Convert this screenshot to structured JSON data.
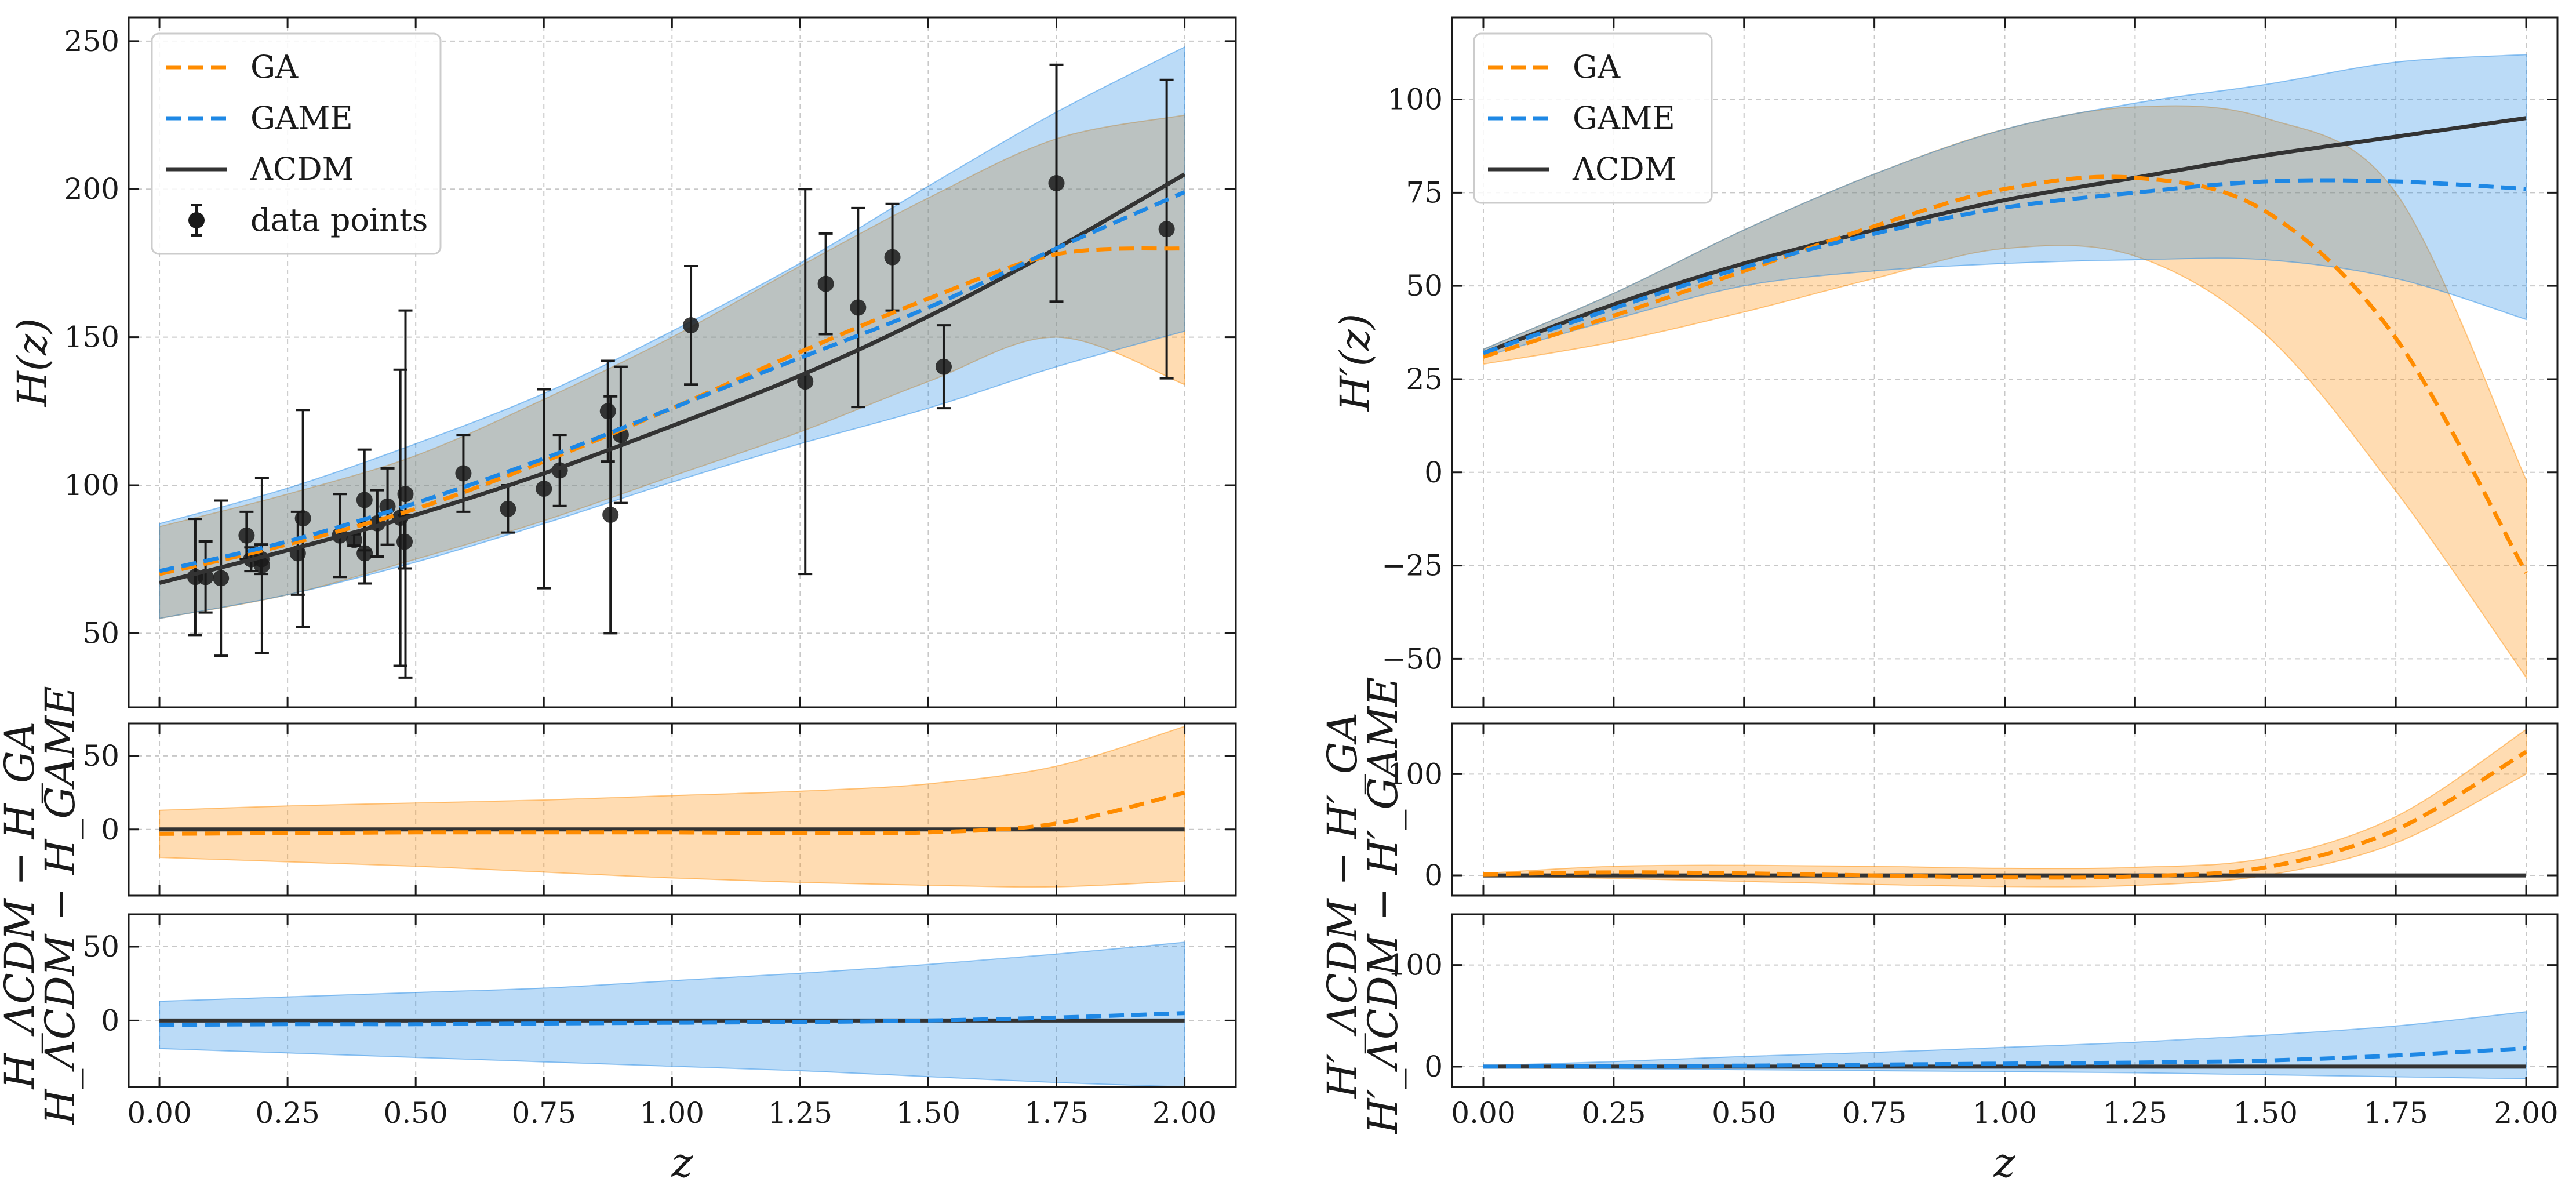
{
  "figure": {
    "colors": {
      "ga": "#ff8c00",
      "game": "#1e88e5",
      "lcdm": "#333333",
      "data": "#1a1a1a",
      "ga_band": "#ffd3a1",
      "game_band": "#b9dcfb"
    },
    "legend_labels": {
      "ga": "GA",
      "game": "GAME",
      "lcdm": "ΛCDM",
      "data": "data points"
    },
    "xlabel": "z",
    "xticks": [
      "0.00",
      "0.25",
      "0.50",
      "0.75",
      "1.00",
      "1.25",
      "1.50",
      "1.75",
      "2.00"
    ]
  },
  "chart_data": [
    {
      "id": "H-main",
      "type": "line",
      "ylabel": "H(z)",
      "xlim": [
        -0.06,
        2.1
      ],
      "ylim": [
        25,
        258
      ],
      "yticks": [
        50,
        100,
        150,
        200,
        250
      ],
      "x": [
        0.0,
        0.25,
        0.5,
        0.75,
        1.0,
        1.25,
        1.5,
        1.75,
        2.0
      ],
      "series": [
        {
          "name": "GA",
          "values": [
            70,
            80,
            92,
            108,
            126,
            145,
            163,
            178,
            180
          ],
          "lower": [
            55,
            63,
            75,
            88,
            103,
            118,
            135,
            150,
            134
          ],
          "upper": [
            86,
            97,
            110,
            129,
            150,
            174,
            197,
            217,
            225
          ]
        },
        {
          "name": "GAME",
          "values": [
            71,
            81,
            94,
            109,
            126,
            143,
            160,
            180,
            199
          ],
          "lower": [
            55,
            63,
            74,
            87,
            101,
            114,
            126,
            140,
            152
          ],
          "upper": [
            87,
            99,
            114,
            131,
            152,
            175,
            201,
            226,
            248
          ]
        },
        {
          "name": "ΛCDM",
          "values": [
            67,
            78,
            90,
            104,
            120,
            137,
            157,
            180,
            205
          ]
        }
      ],
      "points": {
        "x": [
          0.07,
          0.09,
          0.12,
          0.17,
          0.179,
          0.199,
          0.2,
          0.27,
          0.28,
          0.352,
          0.38,
          0.4,
          0.4004,
          0.425,
          0.445,
          0.47,
          0.4783,
          0.48,
          0.593,
          0.68,
          0.75,
          0.781,
          0.875,
          0.88,
          0.9,
          1.037,
          1.26,
          1.3,
          1.363,
          1.43,
          1.53,
          1.75,
          1.965
        ],
        "y": [
          69,
          69,
          68.6,
          83,
          75,
          75,
          72.9,
          77,
          88.8,
          83,
          81.5,
          95,
          77,
          87.1,
          92.8,
          89,
          80.9,
          97,
          104,
          92,
          98.8,
          105,
          125,
          90,
          117,
          154,
          135,
          168,
          160,
          177,
          140,
          202,
          186.5
        ],
        "err": [
          19.6,
          12,
          26.2,
          8,
          4,
          5,
          29.6,
          14,
          36.6,
          14,
          1.9,
          17,
          10.2,
          11.2,
          12.9,
          50,
          9,
          62,
          13,
          8,
          33.6,
          12,
          17,
          40,
          23,
          20,
          65,
          17,
          33.6,
          18,
          14,
          40,
          50.4
        ]
      }
    },
    {
      "id": "H-diff-ga",
      "type": "line",
      "ylabel": "H_ΛCDM − H_GA",
      "xlim": [
        -0.06,
        2.1
      ],
      "ylim": [
        -45,
        72
      ],
      "yticks": [
        0,
        50
      ],
      "x": [
        0.0,
        0.25,
        0.5,
        0.75,
        1.0,
        1.25,
        1.5,
        1.75,
        2.0
      ],
      "series": [
        {
          "name": "GA",
          "values": [
            -3,
            -2.5,
            -2,
            -2,
            -2,
            -2.5,
            -2,
            4,
            25
          ],
          "lower": [
            -19,
            -22,
            -25,
            -29,
            -33,
            -36,
            -38,
            -39,
            -35
          ],
          "upper": [
            13,
            16,
            18,
            20,
            23,
            26,
            31,
            43,
            70
          ]
        },
        {
          "name": "ΛCDM",
          "values": [
            0,
            0,
            0,
            0,
            0,
            0,
            0,
            0,
            0
          ]
        }
      ]
    },
    {
      "id": "H-diff-game",
      "type": "line",
      "ylabel": "H_ΛCDM − H_GAME",
      "xlim": [
        -0.06,
        2.1
      ],
      "ylim": [
        -45,
        72
      ],
      "yticks": [
        0,
        50
      ],
      "x": [
        0.0,
        0.25,
        0.5,
        0.75,
        1.0,
        1.25,
        1.5,
        1.75,
        2.0
      ],
      "series": [
        {
          "name": "GAME",
          "values": [
            -3,
            -2.5,
            -2.5,
            -2,
            -1.5,
            -1,
            0,
            2,
            5
          ],
          "lower": [
            -19,
            -22,
            -25,
            -28,
            -31,
            -34,
            -38,
            -42,
            -45
          ],
          "upper": [
            13,
            16,
            19,
            22,
            27,
            32,
            38,
            45,
            53
          ]
        },
        {
          "name": "ΛCDM",
          "values": [
            0,
            0,
            0,
            0,
            0,
            0,
            0,
            0,
            0
          ]
        }
      ]
    },
    {
      "id": "Hp-main",
      "type": "line",
      "ylabel": "H′(z)",
      "xlim": [
        -0.06,
        2.06
      ],
      "ylim": [
        -63,
        122
      ],
      "yticks": [
        -50,
        -25,
        0,
        25,
        50,
        75,
        100
      ],
      "x": [
        0.0,
        0.25,
        0.5,
        0.75,
        1.0,
        1.25,
        1.5,
        1.75,
        2.0
      ],
      "series": [
        {
          "name": "GA",
          "values": [
            31,
            42,
            54,
            66,
            76,
            79,
            70,
            36,
            -27
          ],
          "lower": [
            29,
            35,
            43,
            52,
            60,
            58,
            37,
            -5,
            -55
          ],
          "upper": [
            33,
            48,
            65,
            80,
            92,
            98,
            95,
            75,
            -2
          ]
        },
        {
          "name": "GAME",
          "values": [
            32,
            44,
            55,
            64,
            71,
            75,
            78,
            78,
            76
          ],
          "lower": [
            31,
            41,
            50,
            54,
            56,
            57,
            57,
            52,
            41
          ],
          "upper": [
            33,
            48,
            65,
            80,
            92,
            99,
            104,
            110,
            112
          ]
        },
        {
          "name": "ΛCDM",
          "values": [
            32,
            45,
            56,
            65,
            73,
            79,
            85,
            90,
            95
          ]
        }
      ]
    },
    {
      "id": "Hp-diff-ga",
      "type": "line",
      "ylabel": "H′_ΛCDM − H′_GA",
      "xlim": [
        -0.06,
        2.06
      ],
      "ylim": [
        -20,
        150
      ],
      "yticks": [
        0,
        100
      ],
      "x": [
        0.0,
        0.25,
        0.5,
        0.75,
        1.0,
        1.25,
        1.5,
        1.75,
        2.0
      ],
      "series": [
        {
          "name": "GA",
          "values": [
            1,
            3,
            2,
            0,
            -2,
            -1,
            8,
            45,
            122
          ],
          "lower": [
            0,
            -3,
            -6,
            -9,
            -11,
            -10,
            0,
            32,
            100
          ],
          "upper": [
            2,
            9,
            10,
            9,
            7,
            8,
            17,
            58,
            144
          ]
        },
        {
          "name": "ΛCDM",
          "values": [
            0,
            0,
            0,
            0,
            0,
            0,
            0,
            0,
            0
          ]
        }
      ]
    },
    {
      "id": "Hp-diff-game",
      "type": "line",
      "ylabel": "H′_ΛCDM − H′_GAME",
      "xlim": [
        -0.06,
        2.06
      ],
      "ylim": [
        -20,
        150
      ],
      "yticks": [
        0,
        100
      ],
      "x": [
        0.0,
        0.25,
        0.5,
        0.75,
        1.0,
        1.25,
        1.5,
        1.75,
        2.0
      ],
      "series": [
        {
          "name": "GAME",
          "values": [
            0,
            0.5,
            1,
            2,
            3,
            4,
            6,
            11,
            18
          ],
          "lower": [
            -1,
            -2,
            -3,
            -4,
            -5,
            -6,
            -8,
            -10,
            -12
          ],
          "upper": [
            1,
            5,
            10,
            14,
            19,
            24,
            31,
            40,
            54
          ]
        },
        {
          "name": "ΛCDM",
          "values": [
            0,
            0,
            0,
            0,
            0,
            0,
            0,
            0,
            0
          ]
        }
      ]
    }
  ]
}
